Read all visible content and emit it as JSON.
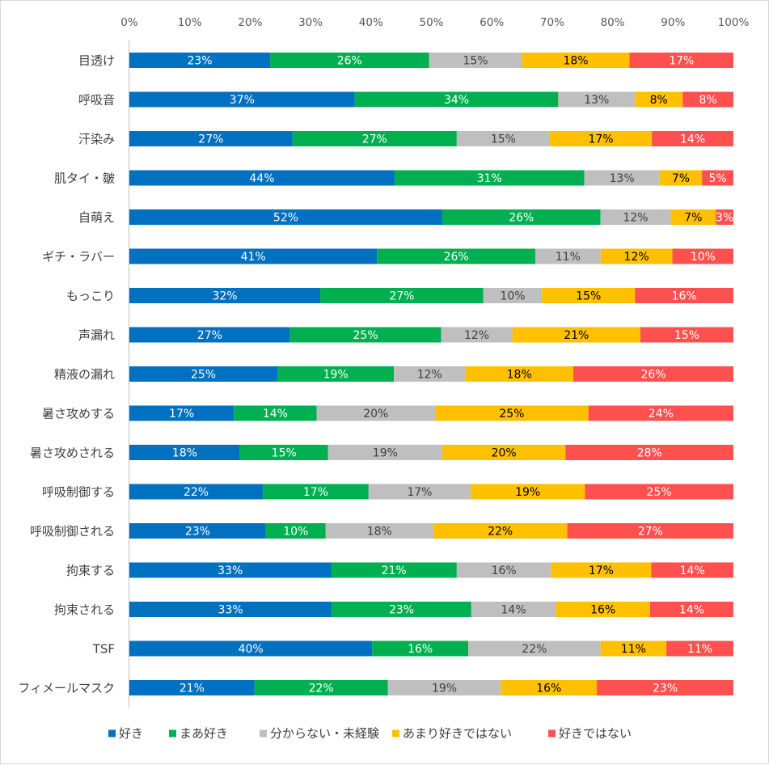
{
  "chart_data": {
    "type": "bar",
    "orientation": "horizontal",
    "stacked": "100%",
    "x_ticks": [
      "0%",
      "10%",
      "20%",
      "30%",
      "40%",
      "50%",
      "60%",
      "70%",
      "80%",
      "90%",
      "100%"
    ],
    "xlim": [
      0,
      100
    ],
    "legend_position": "bottom",
    "categories": [
      "目透け",
      "呼吸音",
      "汗染み",
      "肌タイ・皺",
      "自萌え",
      "ギチ・ラバー",
      "もっこり",
      "声漏れ",
      "精液の漏れ",
      "暑さ攻めする",
      "暑さ攻めされる",
      "呼吸制御する",
      "呼吸制御される",
      "拘束する",
      "拘束される",
      "TSF",
      "フィメールマスク"
    ],
    "series": [
      {
        "name": "好き",
        "color": "#0070c0",
        "label_color": "#ffffff",
        "values": [
          23.3,
          37.3,
          27.0,
          43.9,
          51.8,
          41.0,
          31.6,
          26.6,
          24.5,
          17.3,
          18.3,
          22.1,
          22.6,
          33.4,
          33.5,
          40.2,
          20.7
        ],
        "labels": [
          "23%",
          "37%",
          "27%",
          "44%",
          "52%",
          "41%",
          "32%",
          "27%",
          "25%",
          "17%",
          "18%",
          "22%",
          "23%",
          "33%",
          "33%",
          "40%",
          "21%"
        ]
      },
      {
        "name": "まあ好き",
        "color": "#00b050",
        "label_color": "#ffffff",
        "values": [
          26.3,
          33.7,
          27.2,
          31.4,
          26.2,
          26.2,
          27.0,
          25.0,
          19.3,
          13.7,
          14.6,
          17.5,
          9.9,
          20.8,
          23.1,
          15.9,
          22.1
        ],
        "labels": [
          "26%",
          "34%",
          "27%",
          "31%",
          "26%",
          "26%",
          "27%",
          "25%",
          "19%",
          "14%",
          "15%",
          "17%",
          "10%",
          "21%",
          "23%",
          "16%",
          "22%"
        ]
      },
      {
        "name": "分からない・未経験",
        "color": "#bfbfbf",
        "label_color": "#404040",
        "values": [
          15.4,
          12.7,
          15.4,
          12.5,
          11.6,
          10.8,
          9.7,
          11.8,
          11.8,
          19.6,
          18.9,
          16.9,
          17.8,
          15.6,
          14.0,
          21.9,
          18.7
        ],
        "labels": [
          "15%",
          "13%",
          "15%",
          "13%",
          "12%",
          "11%",
          "10%",
          "12%",
          "12%",
          "20%",
          "19%",
          "17%",
          "18%",
          "16%",
          "14%",
          "22%",
          "19%"
        ]
      },
      {
        "name": "あまり好きではない",
        "color": "#ffc000",
        "label_color": "#000000",
        "values": [
          17.8,
          7.9,
          16.9,
          7.0,
          7.5,
          11.9,
          15.4,
          21.2,
          17.9,
          25.4,
          20.4,
          18.9,
          22.2,
          16.6,
          15.6,
          10.9,
          15.9
        ],
        "labels": [
          "18%",
          "8%",
          "17%",
          "7%",
          "7%",
          "12%",
          "15%",
          "21%",
          "18%",
          "25%",
          "20%",
          "19%",
          "22%",
          "17%",
          "16%",
          "11%",
          "16%"
        ]
      },
      {
        "name": "好きではない",
        "color": "#ff5050",
        "label_color": "#ffffff",
        "values": [
          17.2,
          8.4,
          13.5,
          5.2,
          2.9,
          10.1,
          16.3,
          15.4,
          26.5,
          24.0,
          27.8,
          24.6,
          27.5,
          13.6,
          13.8,
          11.1,
          22.6
        ],
        "labels": [
          "17%",
          "8%",
          "14%",
          "5%",
          "3%",
          "10%",
          "16%",
          "15%",
          "26%",
          "24%",
          "28%",
          "25%",
          "27%",
          "14%",
          "14%",
          "11%",
          "23%"
        ]
      }
    ]
  }
}
